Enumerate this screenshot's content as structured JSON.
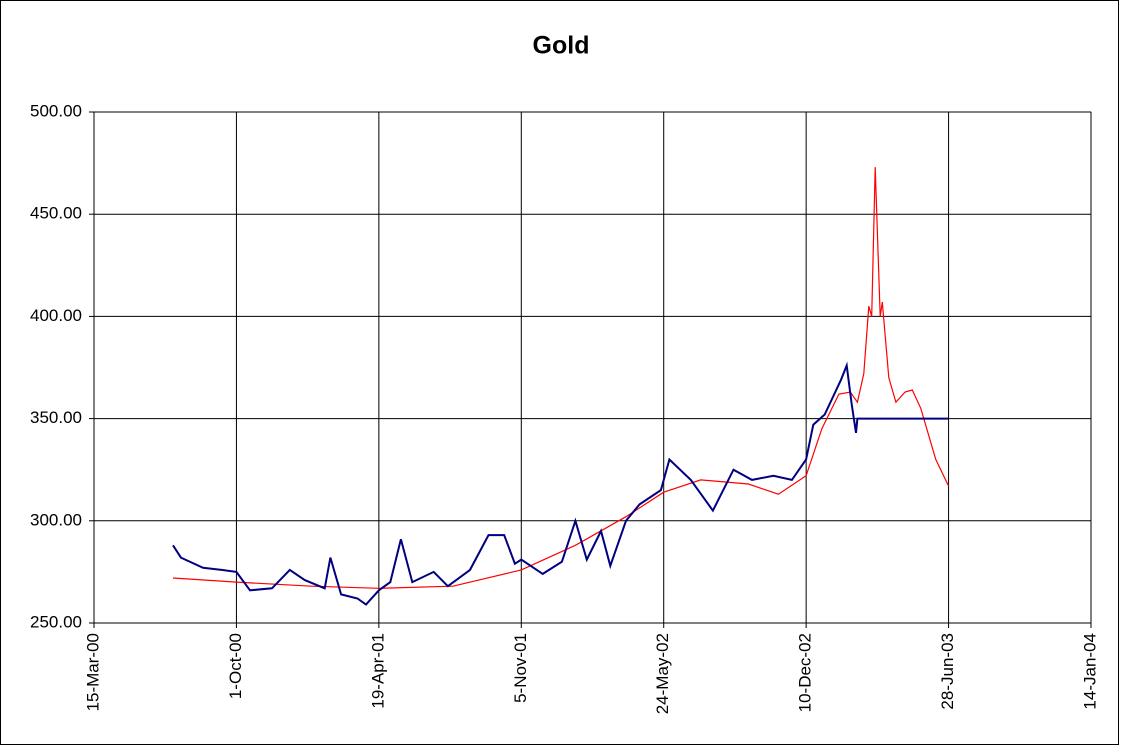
{
  "chart_data": {
    "type": "line",
    "title": "Gold",
    "xlim": [
      "2000-03-15",
      "2004-01-14"
    ],
    "xticks": [
      {
        "value": "2000-03-15",
        "label": "15-Mar-00"
      },
      {
        "value": "2000-10-01",
        "label": "1-Oct-00"
      },
      {
        "value": "2001-04-19",
        "label": "19-Apr-01"
      },
      {
        "value": "2001-11-05",
        "label": "5-Nov-01"
      },
      {
        "value": "2002-05-24",
        "label": "24-May-02"
      },
      {
        "value": "2002-12-10",
        "label": "10-Dec-02"
      },
      {
        "value": "2003-06-28",
        "label": "28-Jun-03"
      },
      {
        "value": "2004-01-14",
        "label": "14-Jan-04"
      }
    ],
    "ylim": [
      250,
      500
    ],
    "yticks": [
      {
        "value": 250,
        "label": "250.00"
      },
      {
        "value": 300,
        "label": "300.00"
      },
      {
        "value": 350,
        "label": "350.00"
      },
      {
        "value": 400,
        "label": "400.00"
      },
      {
        "value": 450,
        "label": "450.00"
      },
      {
        "value": 500,
        "label": "500.00"
      }
    ],
    "grid": true,
    "series": [
      {
        "color": "#000080",
        "x": [
          "2000-07-04",
          "2000-07-15",
          "2000-08-15",
          "2000-09-10",
          "2000-10-01",
          "2000-10-20",
          "2000-11-20",
          "2000-12-15",
          "2001-01-05",
          "2001-02-02",
          "2001-02-10",
          "2001-02-25",
          "2001-03-20",
          "2001-04-01",
          "2001-04-19",
          "2001-05-05",
          "2001-05-20",
          "2001-06-05",
          "2001-07-05",
          "2001-07-25",
          "2001-08-25",
          "2001-09-20",
          "2001-10-12",
          "2001-10-27",
          "2001-11-05",
          "2001-12-05",
          "2002-01-01",
          "2002-01-20",
          "2002-02-05",
          "2002-02-25",
          "2002-03-10",
          "2002-04-01",
          "2002-04-20",
          "2002-05-20",
          "2002-06-01",
          "2002-07-01",
          "2002-08-01",
          "2002-08-30",
          "2002-09-25",
          "2002-10-25",
          "2002-11-20",
          "2002-12-10",
          "2002-12-20",
          "2003-01-05",
          "2003-01-28",
          "2003-02-05",
          "2003-02-12",
          "2003-02-18",
          "2003-02-20",
          "2003-06-28"
        ],
        "values": [
          288,
          282,
          277,
          276,
          275,
          266,
          267,
          276,
          271,
          267,
          282,
          264,
          262,
          259,
          266,
          270,
          291,
          270,
          275,
          268,
          276,
          293,
          293,
          279,
          281,
          274,
          280,
          300,
          281,
          295,
          278,
          300,
          308,
          315,
          330,
          320,
          305,
          325,
          320,
          322,
          320,
          330,
          347,
          352,
          369,
          376,
          357,
          343,
          350,
          350
        ]
      },
      {
        "color": "#ff0000",
        "x": [
          "2000-07-04",
          "2000-10-01",
          "2001-01-15",
          "2001-04-19",
          "2001-08-01",
          "2001-11-05",
          "2002-01-20",
          "2002-04-01",
          "2002-05-24",
          "2002-07-15",
          "2002-09-20",
          "2002-11-01",
          "2002-12-10",
          "2003-01-01",
          "2003-01-25",
          "2003-02-10",
          "2003-02-20",
          "2003-03-01",
          "2003-03-08",
          "2003-03-12",
          "2003-03-17",
          "2003-03-24",
          "2003-03-27",
          "2003-04-05",
          "2003-04-15",
          "2003-04-28",
          "2003-05-08",
          "2003-05-20",
          "2003-06-10",
          "2003-06-28"
        ],
        "values": [
          272,
          270,
          268,
          267,
          268,
          276,
          288,
          302,
          314,
          320,
          318,
          313,
          322,
          345,
          362,
          363,
          358,
          372,
          405,
          400,
          473,
          400,
          407,
          370,
          358,
          363,
          364,
          355,
          330,
          317
        ]
      }
    ]
  }
}
